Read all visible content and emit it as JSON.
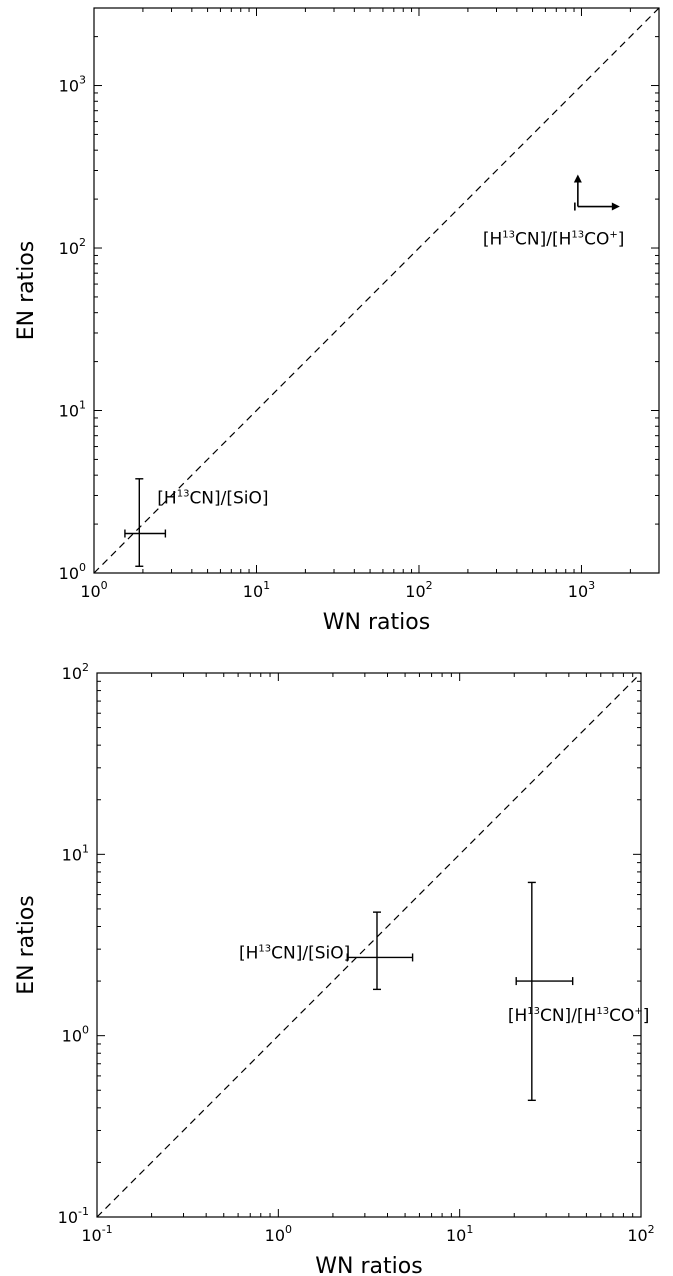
{
  "chart_data": [
    {
      "type": "scatter",
      "xlabel": "WN ratios",
      "ylabel": "EN ratios",
      "xscale": "log",
      "yscale": "log",
      "xlim": [
        1,
        3000
      ],
      "ylim": [
        1,
        3000
      ],
      "x_ticks": [
        {
          "base": "10",
          "exp": "0"
        },
        {
          "base": "10",
          "exp": "1"
        },
        {
          "base": "10",
          "exp": "2"
        },
        {
          "base": "10",
          "exp": "3"
        }
      ],
      "y_ticks": [
        {
          "base": "10",
          "exp": "0"
        },
        {
          "base": "10",
          "exp": "1"
        },
        {
          "base": "10",
          "exp": "2"
        },
        {
          "base": "10",
          "exp": "3"
        }
      ],
      "reference_line": "y = x (dashed)",
      "points": [
        {
          "label_parts": [
            "[H",
            "13",
            "CN]/[SiO]"
          ],
          "x": 1.9,
          "x_err_low": 1.55,
          "x_err_high": 2.75,
          "y": 1.75,
          "y_err_low": 1.1,
          "y_err_high": 3.8,
          "limit": "none"
        },
        {
          "label_parts": [
            "[H",
            "13",
            "CN]/[H",
            "13",
            "CO",
            "+",
            "]"
          ],
          "x": 950,
          "y": 180,
          "limit": "lower limits in x and y"
        }
      ]
    },
    {
      "type": "scatter",
      "xlabel": "WN ratios",
      "ylabel": "EN ratios",
      "xscale": "log",
      "yscale": "log",
      "xlim": [
        0.1,
        100
      ],
      "ylim": [
        0.1,
        100
      ],
      "x_ticks": [
        {
          "base": "10",
          "exp": "-1"
        },
        {
          "base": "10",
          "exp": "0"
        },
        {
          "base": "10",
          "exp": "1"
        },
        {
          "base": "10",
          "exp": "2"
        }
      ],
      "y_ticks": [
        {
          "base": "10",
          "exp": "-1"
        },
        {
          "base": "10",
          "exp": "0"
        },
        {
          "base": "10",
          "exp": "1"
        },
        {
          "base": "10",
          "exp": "2"
        }
      ],
      "reference_line": "y = x (dashed)",
      "points": [
        {
          "label_parts": [
            "[H",
            "13",
            "CN]/[SiO]"
          ],
          "x": 3.5,
          "x_err_low": 2.4,
          "x_err_high": 5.5,
          "y": 2.7,
          "y_err_low": 1.8,
          "y_err_high": 4.8,
          "limit": "none"
        },
        {
          "label_parts": [
            "[H",
            "13",
            "CN]/[H",
            "13",
            "CO",
            "+",
            "]"
          ],
          "x": 25,
          "x_err_low": 20.5,
          "x_err_high": 42,
          "y": 2.0,
          "y_err_low": 0.44,
          "y_err_high": 7.0,
          "limit": "none"
        }
      ]
    }
  ]
}
